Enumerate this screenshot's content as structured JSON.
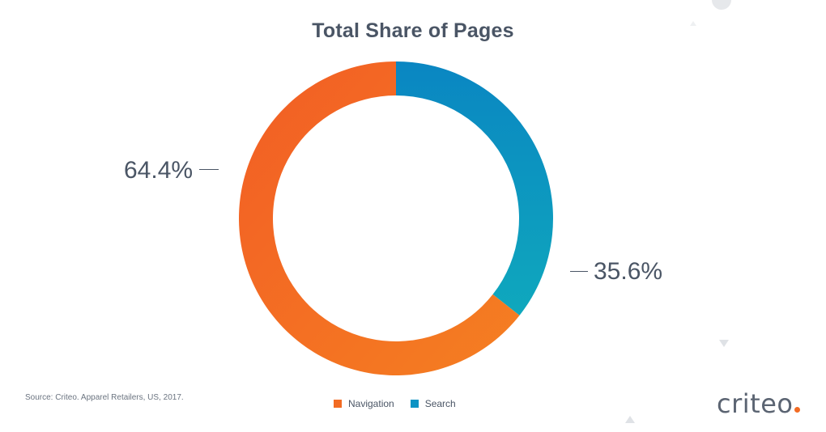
{
  "chart_data": {
    "type": "pie",
    "variant": "donut",
    "title": "Total Share of Pages",
    "categories": [
      "Navigation",
      "Search"
    ],
    "values": [
      64.4,
      35.6
    ],
    "value_labels": [
      "64.4%",
      "35.6%"
    ],
    "colors": [
      "#f26b23",
      "#0ea2bf"
    ],
    "legend_position": "bottom-center"
  },
  "source": "Source: Criteo. Apparel Retailers, US, 2017.",
  "legend": [
    {
      "label": "Navigation",
      "color": "#f26b23"
    },
    {
      "label": "Search",
      "color": "#0c93c4"
    }
  ],
  "logo": {
    "text": "criteo"
  },
  "colors": {
    "text": "#4a5565",
    "accent_orange": "#f26b23",
    "accent_blue": "#0c93c4"
  }
}
